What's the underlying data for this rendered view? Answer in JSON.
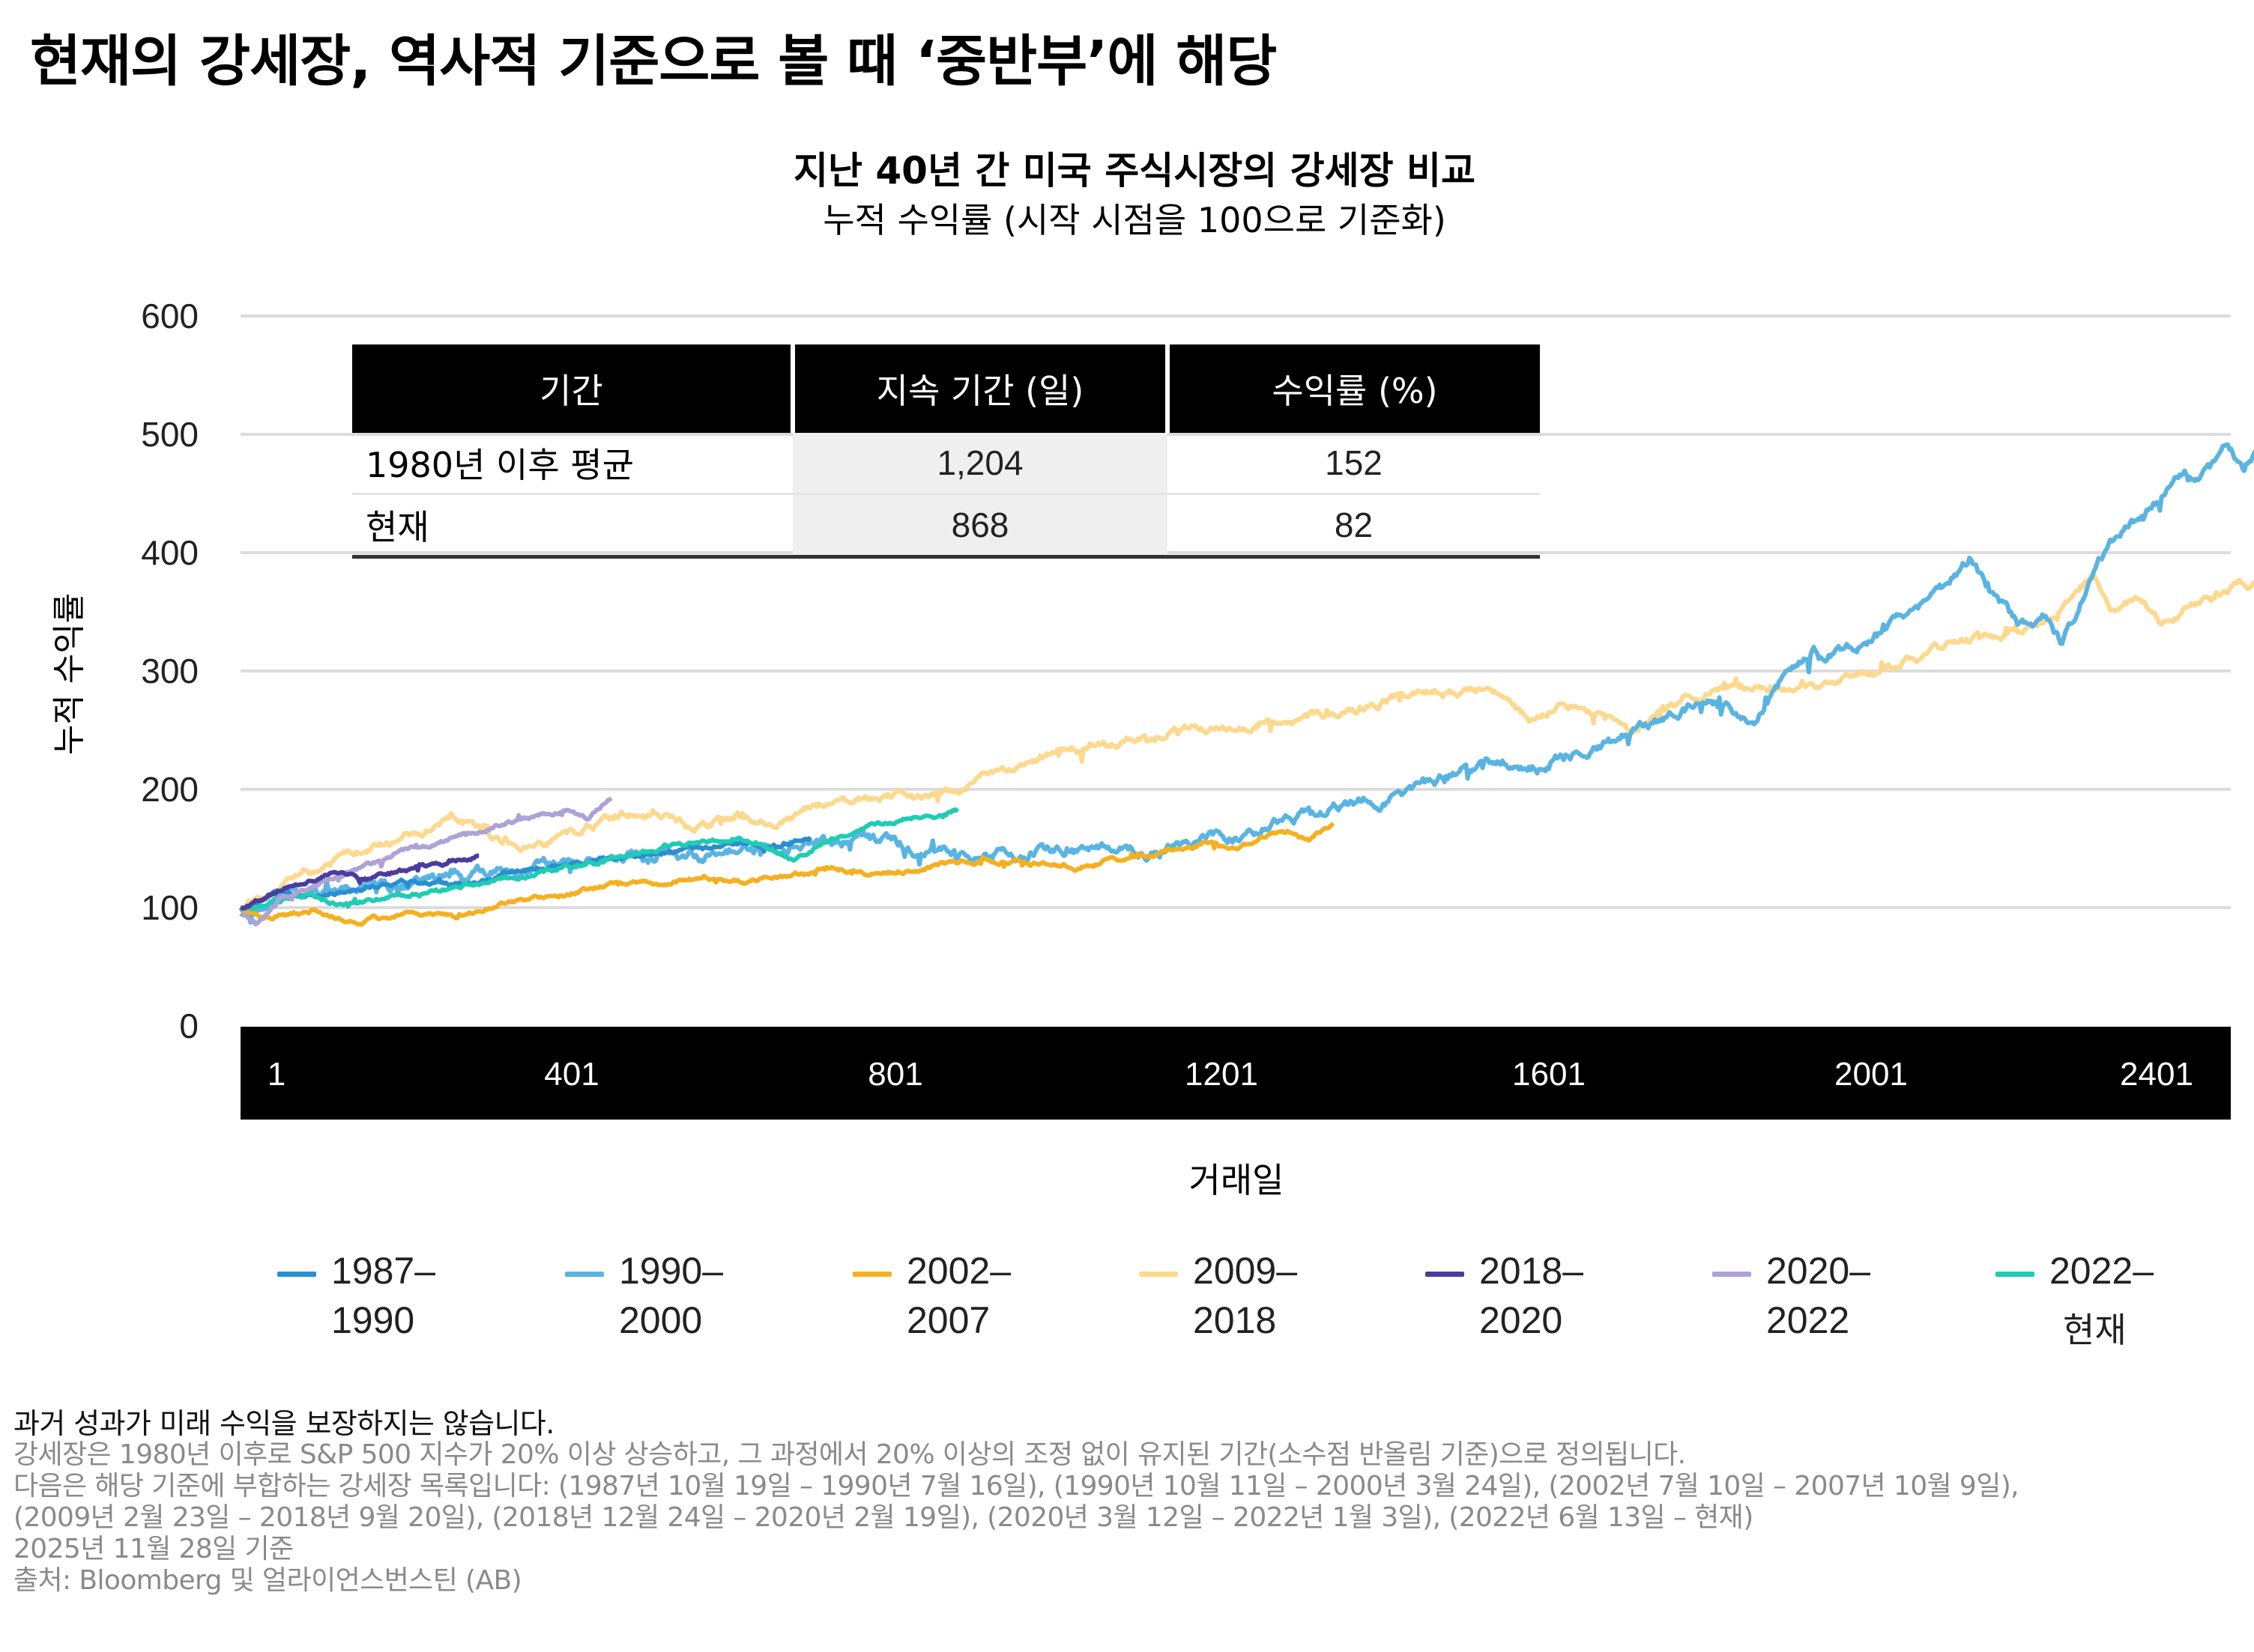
{
  "header": {
    "title": "현재의 강세장, 역사적 기준으로 볼 때 ‘중반부’에 해당"
  },
  "chart": {
    "title": "지난 40년 간 미국 주식시장의 강세장 비교",
    "subtitle": "누적 수익률 (시작 시점을 100으로 기준화)",
    "ylabel": "누적 수익률",
    "xlabel": "거래일"
  },
  "table": {
    "headers": [
      "기간",
      "지속 기간 (일)",
      "수익률 (%)"
    ],
    "rows": [
      {
        "label": "1980년 이후 평균",
        "duration": "1,204",
        "return": "152"
      },
      {
        "label": "현재",
        "duration": "868",
        "return": "82"
      }
    ]
  },
  "legend": [
    {
      "line1": "1987–",
      "line2": "1990",
      "color": "#2a8fd0"
    },
    {
      "line1": "1990–",
      "line2": "2000",
      "color": "#5ab4e2"
    },
    {
      "line1": "2002–",
      "line2": "2007",
      "color": "#f5b021"
    },
    {
      "line1": "2009–",
      "line2": "2018",
      "color": "#fcd98e"
    },
    {
      "line1": "2018–",
      "line2": "2020",
      "color": "#4b3c9e"
    },
    {
      "line1": "2020–",
      "line2": "2022",
      "color": "#ada3d6"
    },
    {
      "line1": "2022–",
      "line2": "현재",
      "color": "#20ccb4"
    }
  ],
  "footnotes": {
    "disclaimer": "과거 성과가 미래 수익을 보장하지는 않습니다.",
    "lines": [
      "강세장은 1980년 이후로 S&P 500 지수가 20% 이상 상승하고, 그 과정에서 20% 이상의 조정 없이 유지된 기간(소수점 반올림 기준)으로 정의됩니다.",
      "다음은 해당 기준에 부합하는 강세장 목록입니다: (1987년 10월 19일 – 1990년 7월 16일), (1990년 10월 11일 – 2000년 3월 24일), (2002년 7월 10일 – 2007년 10월 9일),",
      "(2009년 2월 23일 – 2018년 9월 20일), (2018년 12월 24일 – 2020년 2월 19일), (2020년 3월 12일 – 2022년 1월 3일), (2022년 6월 13일 – 현재)",
      "2025년 11월 28일 기준",
      "출처: Bloomberg 및 얼라이언스번스틴 (AB)"
    ]
  },
  "chart_data": {
    "type": "line",
    "title": "지난 40년 간 미국 주식시장의 강세장 비교",
    "subtitle": "누적 수익률 (시작 시점을 100으로 기준화)",
    "xlabel": "거래일",
    "ylabel": "누적 수익률",
    "xlim": [
      1,
      2480
    ],
    "ylim": [
      0,
      600
    ],
    "yticks": [
      0,
      100,
      200,
      300,
      400,
      500,
      600
    ],
    "xticks": [
      1,
      401,
      801,
      1201,
      1601,
      2001,
      2401
    ],
    "grid": true,
    "legend_position": "bottom",
    "series": [
      {
        "name": "1987–1990",
        "color": "#2a8fd0",
        "points": [
          [
            1,
            100
          ],
          [
            40,
            112
          ],
          [
            100,
            110
          ],
          [
            150,
            118
          ],
          [
            200,
            122
          ],
          [
            260,
            118
          ],
          [
            320,
            128
          ],
          [
            380,
            135
          ],
          [
            440,
            140
          ],
          [
            500,
            146
          ],
          [
            560,
            150
          ],
          [
            620,
            155
          ],
          [
            660,
            152
          ],
          [
            690,
            160
          ]
        ]
      },
      {
        "name": "1990–2000",
        "color": "#5ab4e2",
        "points": [
          [
            1,
            100
          ],
          [
            60,
            110
          ],
          [
            120,
            115
          ],
          [
            200,
            120
          ],
          [
            260,
            128
          ],
          [
            330,
            132
          ],
          [
            400,
            138
          ],
          [
            460,
            140
          ],
          [
            520,
            143
          ],
          [
            600,
            148
          ],
          [
            700,
            155
          ],
          [
            760,
            158
          ],
          [
            800,
            152
          ],
          [
            880,
            145
          ],
          [
            960,
            148
          ],
          [
            1040,
            150
          ],
          [
            1100,
            145
          ],
          [
            1180,
            158
          ],
          [
            1260,
            172
          ],
          [
            1330,
            185
          ],
          [
            1400,
            195
          ],
          [
            1460,
            210
          ],
          [
            1520,
            225
          ],
          [
            1580,
            220
          ],
          [
            1640,
            235
          ],
          [
            1700,
            255
          ],
          [
            1760,
            270
          ],
          [
            1800,
            268
          ],
          [
            1830,
            255
          ],
          [
            1860,
            290
          ],
          [
            1900,
            315
          ],
          [
            1950,
            320
          ],
          [
            2000,
            340
          ],
          [
            2060,
            372
          ],
          [
            2090,
            398
          ],
          [
            2120,
            360
          ],
          [
            2150,
            335
          ],
          [
            2180,
            345
          ],
          [
            2200,
            325
          ],
          [
            2240,
            385
          ],
          [
            2290,
            430
          ],
          [
            2330,
            455
          ],
          [
            2370,
            470
          ],
          [
            2400,
            490
          ],
          [
            2420,
            472
          ],
          [
            2440,
            495
          ],
          [
            2470,
            450
          ],
          [
            2480,
            516
          ]
        ]
      },
      {
        "name": "2002–2007",
        "color": "#f5b021",
        "points": [
          [
            1,
            100
          ],
          [
            40,
            92
          ],
          [
            90,
            98
          ],
          [
            140,
            86
          ],
          [
            200,
            96
          ],
          [
            260,
            92
          ],
          [
            320,
            104
          ],
          [
            380,
            110
          ],
          [
            440,
            118
          ],
          [
            500,
            120
          ],
          [
            560,
            124
          ],
          [
            620,
            122
          ],
          [
            680,
            128
          ],
          [
            720,
            132
          ],
          [
            780,
            128
          ],
          [
            840,
            136
          ],
          [
            900,
            140
          ],
          [
            960,
            138
          ],
          [
            1010,
            135
          ],
          [
            1060,
            142
          ],
          [
            1120,
            148
          ],
          [
            1170,
            155
          ],
          [
            1200,
            150
          ],
          [
            1240,
            160
          ],
          [
            1270,
            165
          ],
          [
            1290,
            156
          ],
          [
            1321,
            171
          ]
        ]
      },
      {
        "name": "2009–2018",
        "color": "#fcd98e",
        "points": [
          [
            1,
            100
          ],
          [
            30,
            110
          ],
          [
            80,
            128
          ],
          [
            140,
            145
          ],
          [
            200,
            158
          ],
          [
            240,
            170
          ],
          [
            280,
            178
          ],
          [
            310,
            160
          ],
          [
            340,
            152
          ],
          [
            380,
            158
          ],
          [
            420,
            168
          ],
          [
            470,
            180
          ],
          [
            520,
            175
          ],
          [
            560,
            168
          ],
          [
            600,
            178
          ],
          [
            640,
            172
          ],
          [
            680,
            182
          ],
          [
            720,
            190
          ],
          [
            780,
            195
          ],
          [
            820,
            190
          ],
          [
            880,
            205
          ],
          [
            940,
            220
          ],
          [
            1000,
            232
          ],
          [
            1050,
            238
          ],
          [
            1100,
            245
          ],
          [
            1150,
            252
          ],
          [
            1200,
            250
          ],
          [
            1250,
            260
          ],
          [
            1300,
            262
          ],
          [
            1350,
            270
          ],
          [
            1400,
            278
          ],
          [
            1450,
            282
          ],
          [
            1500,
            285
          ],
          [
            1540,
            270
          ],
          [
            1560,
            255
          ],
          [
            1600,
            275
          ],
          [
            1640,
            265
          ],
          [
            1680,
            250
          ],
          [
            1720,
            270
          ],
          [
            1780,
            283
          ],
          [
            1830,
            285
          ],
          [
            1880,
            288
          ],
          [
            1930,
            292
          ],
          [
            1980,
            300
          ],
          [
            2030,
            312
          ],
          [
            2080,
            325
          ],
          [
            2130,
            332
          ],
          [
            2180,
            345
          ],
          [
            2220,
            365
          ],
          [
            2240,
            380
          ],
          [
            2260,
            350
          ],
          [
            2290,
            360
          ],
          [
            2320,
            340
          ],
          [
            2360,
            355
          ],
          [
            2400,
            368
          ],
          [
            2440,
            378
          ],
          [
            2480,
            391
          ]
        ]
      },
      {
        "name": "2018–2020",
        "color": "#4b3c9e",
        "points": [
          [
            1,
            100
          ],
          [
            30,
            108
          ],
          [
            60,
            118
          ],
          [
            90,
            125
          ],
          [
            120,
            130
          ],
          [
            150,
            124
          ],
          [
            180,
            128
          ],
          [
            210,
            132
          ],
          [
            240,
            136
          ],
          [
            270,
            140
          ],
          [
            290,
            144
          ]
        ]
      },
      {
        "name": "2020–2022",
        "color": "#ada3d6",
        "points": [
          [
            1,
            95
          ],
          [
            20,
            85
          ],
          [
            50,
            110
          ],
          [
            90,
            120
          ],
          [
            130,
            130
          ],
          [
            170,
            140
          ],
          [
            200,
            150
          ],
          [
            240,
            155
          ],
          [
            280,
            165
          ],
          [
            320,
            172
          ],
          [
            360,
            178
          ],
          [
            400,
            182
          ],
          [
            420,
            176
          ],
          [
            440,
            188
          ],
          [
            450,
            193
          ]
        ]
      },
      {
        "name": "2022–현재",
        "color": "#20ccb4",
        "points": [
          [
            1,
            100
          ],
          [
            40,
            105
          ],
          [
            80,
            112
          ],
          [
            120,
            103
          ],
          [
            170,
            108
          ],
          [
            220,
            112
          ],
          [
            280,
            120
          ],
          [
            340,
            128
          ],
          [
            400,
            135
          ],
          [
            460,
            142
          ],
          [
            520,
            152
          ],
          [
            560,
            155
          ],
          [
            600,
            160
          ],
          [
            640,
            150
          ],
          [
            670,
            140
          ],
          [
            700,
            155
          ],
          [
            740,
            165
          ],
          [
            780,
            172
          ],
          [
            820,
            178
          ],
          [
            850,
            180
          ],
          [
            868,
            184
          ]
        ]
      }
    ]
  }
}
